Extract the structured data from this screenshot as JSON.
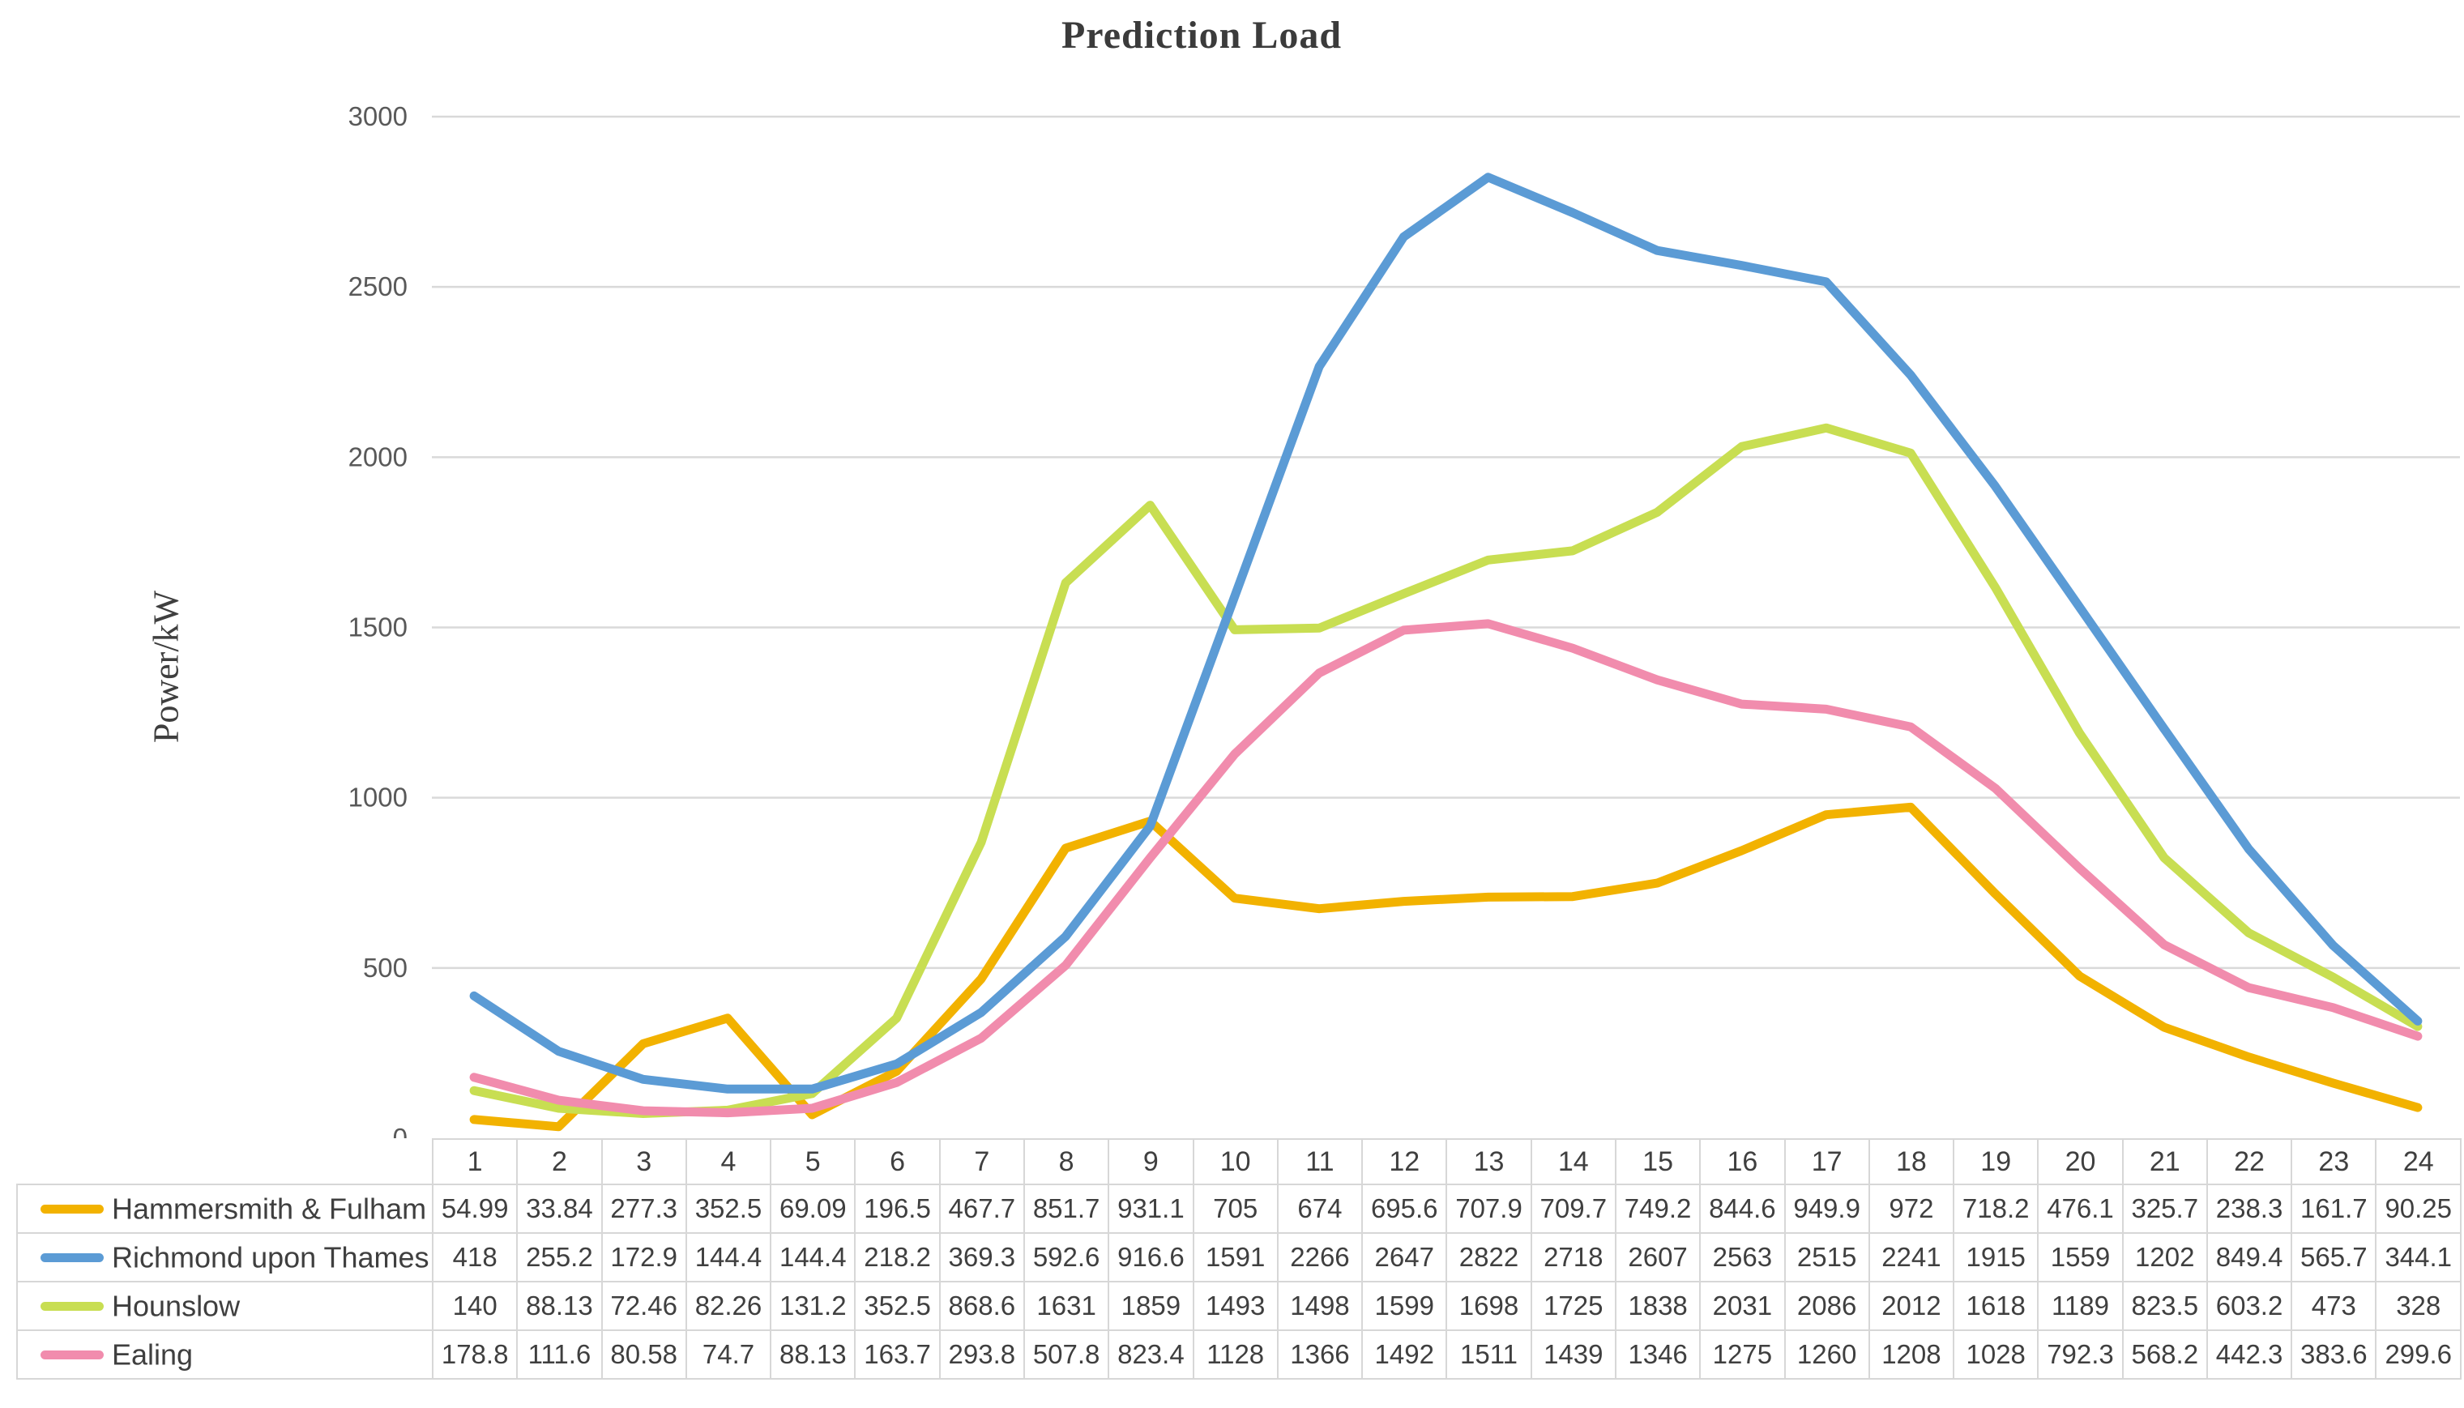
{
  "chart_data": {
    "type": "line",
    "title": "Prediction Load",
    "ylabel": "Power/kW",
    "xlabel": "",
    "ylim": [
      0,
      3000
    ],
    "ytick_step": 500,
    "grid": true,
    "legend_position": "data-table-left",
    "x": [
      1,
      2,
      3,
      4,
      5,
      6,
      7,
      8,
      9,
      10,
      11,
      12,
      13,
      14,
      15,
      16,
      17,
      18,
      19,
      20,
      21,
      22,
      23,
      24
    ],
    "series": [
      {
        "name": "Hammersmith & Fulham",
        "color": "#F2B200",
        "z": 1,
        "values": [
          54.99,
          33.84,
          277.3,
          352.5,
          69.09,
          196.5,
          467.7,
          851.7,
          931.1,
          705,
          674,
          695.6,
          707.9,
          709.7,
          749.2,
          844.6,
          949.9,
          972,
          718.2,
          476.1,
          325.7,
          238.3,
          161.7,
          90.25
        ]
      },
      {
        "name": "Richmond upon Thames",
        "color": "#5B9BD5",
        "z": 3,
        "values": [
          418,
          255.2,
          172.9,
          144.4,
          144.4,
          218.2,
          369.3,
          592.6,
          916.6,
          1591,
          2266,
          2647,
          2822,
          2718,
          2607,
          2563,
          2515,
          2241,
          1915,
          1559,
          1202,
          849.4,
          565.7,
          344.1
        ]
      },
      {
        "name": "Hounslow",
        "color": "#C8DE52",
        "z": 2,
        "values": [
          140,
          88.13,
          72.46,
          82.26,
          131.2,
          352.5,
          868.6,
          1631,
          1859,
          1493,
          1498,
          1599,
          1698,
          1725,
          1838,
          2031,
          2086,
          2012,
          1618,
          1189,
          823.5,
          603.2,
          473,
          328
        ]
      },
      {
        "name": "Ealing",
        "color": "#F18CAD",
        "z": 4,
        "values": [
          178.8,
          111.6,
          80.58,
          74.7,
          88.13,
          163.7,
          293.8,
          507.8,
          823.4,
          1128,
          1366,
          1492,
          1511,
          1439,
          1346,
          1275,
          1260,
          1208,
          1028,
          792.3,
          568.2,
          442.3,
          383.6,
          299.6
        ]
      }
    ],
    "colors": {
      "gridline": "#D9D9D9",
      "table_border": "#D7D7D7",
      "tick_text": "#595959",
      "table_text": "#3F3F3F",
      "title_text": "#3B3B3B"
    }
  }
}
